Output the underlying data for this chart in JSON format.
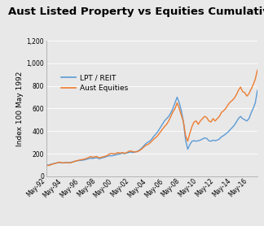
{
  "title": "Aust Listed Property vs Equities Cumulative Index",
  "ylabel": "Index 100 May 1992",
  "ylim": [
    0,
    1200
  ],
  "yticks": [
    0,
    200,
    400,
    600,
    800,
    1000,
    1200
  ],
  "background_color": "#e8e8e8",
  "plot_bg_color": "#e8e8e8",
  "lpt_color": "#5b9bd5",
  "equities_color": "#ed7d31",
  "lpt_label": "LPT / REIT",
  "equities_label": "Aust Equities",
  "title_fontsize": 9.5,
  "legend_fontsize": 6.5,
  "tick_fontsize": 5.5,
  "ylabel_fontsize": 6.5,
  "xtick_labels": [
    "May-92",
    "May-94",
    "May-96",
    "May-98",
    "May-00",
    "May-02",
    "May-04",
    "May-06",
    "May-08",
    "May-10",
    "May-12",
    "May-14",
    "May-16"
  ],
  "xtick_positions": [
    0,
    8,
    16,
    24,
    32,
    40,
    48,
    56,
    64,
    72,
    80,
    88,
    96
  ],
  "lpt_values": [
    100,
    98,
    105,
    110,
    115,
    118,
    122,
    120,
    118,
    120,
    122,
    120,
    125,
    130,
    135,
    138,
    140,
    142,
    145,
    150,
    155,
    160,
    158,
    162,
    165,
    155,
    160,
    165,
    170,
    178,
    182,
    180,
    185,
    190,
    195,
    198,
    205,
    200,
    205,
    210,
    215,
    210,
    215,
    220,
    230,
    245,
    265,
    285,
    300,
    310,
    330,
    355,
    375,
    400,
    430,
    460,
    490,
    510,
    530,
    560,
    600,
    650,
    700,
    650,
    580,
    480,
    320,
    240,
    280,
    310,
    315,
    310,
    315,
    320,
    330,
    340,
    335,
    315,
    310,
    320,
    315,
    320,
    330,
    350,
    360,
    375,
    390,
    410,
    430,
    450,
    480,
    510,
    530,
    510,
    500,
    490,
    510,
    560,
    600,
    650,
    760
  ],
  "equities_values": [
    100,
    95,
    100,
    108,
    112,
    118,
    125,
    122,
    118,
    122,
    120,
    118,
    122,
    128,
    135,
    140,
    145,
    148,
    152,
    158,
    165,
    175,
    168,
    172,
    175,
    162,
    168,
    172,
    178,
    185,
    198,
    202,
    198,
    202,
    210,
    205,
    210,
    205,
    208,
    220,
    225,
    218,
    215,
    218,
    225,
    238,
    255,
    272,
    280,
    292,
    310,
    330,
    345,
    365,
    390,
    415,
    440,
    460,
    490,
    530,
    570,
    600,
    650,
    600,
    540,
    480,
    360,
    310,
    380,
    440,
    480,
    490,
    460,
    490,
    510,
    530,
    520,
    490,
    480,
    510,
    490,
    510,
    530,
    565,
    580,
    600,
    630,
    655,
    670,
    690,
    720,
    760,
    790,
    750,
    740,
    710,
    730,
    770,
    810,
    860,
    940
  ]
}
